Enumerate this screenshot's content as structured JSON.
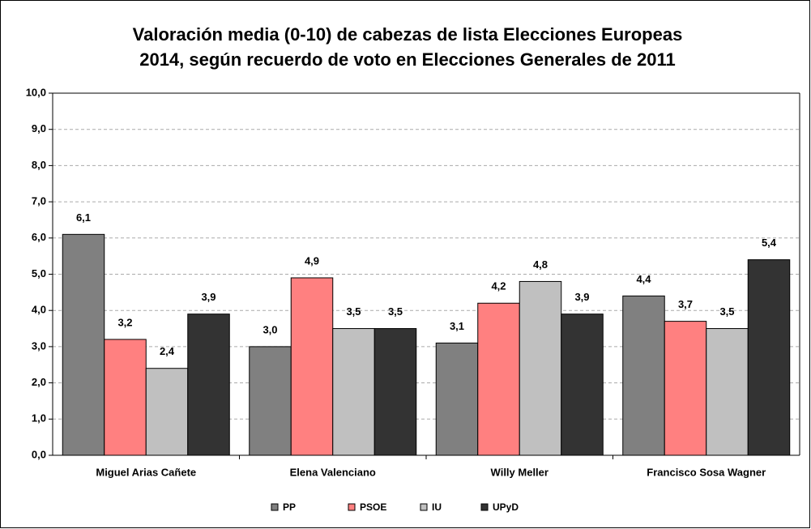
{
  "chart_data": {
    "type": "bar",
    "title": [
      "Valoración media (0-10) de cabezas de lista Elecciones Europeas",
      "2014, según recuerdo de voto en Elecciones Generales de 2011"
    ],
    "categories": [
      "Miguel Arias Cañete",
      "Elena Valenciano",
      "Willy Meller",
      "Francisco Sosa Wagner"
    ],
    "series": [
      {
        "name": "PP",
        "color": "#808080",
        "values": [
          6.1,
          3.0,
          3.1,
          4.4
        ],
        "value_labels": [
          "6,1",
          "3,0",
          "3,1",
          "4,4"
        ]
      },
      {
        "name": "PSOE",
        "color": "#ff8080",
        "values": [
          3.2,
          4.9,
          4.2,
          3.7
        ],
        "value_labels": [
          "3,2",
          "4,9",
          "4,2",
          "3,7"
        ]
      },
      {
        "name": "IU",
        "color": "#c0c0c0",
        "values": [
          2.4,
          3.5,
          4.8,
          3.5
        ],
        "value_labels": [
          "2,4",
          "3,5",
          "4,8",
          "3,5"
        ]
      },
      {
        "name": "UPyD",
        "color": "#333333",
        "values": [
          3.9,
          3.5,
          3.9,
          5.4
        ],
        "value_labels": [
          "3,9",
          "3,5",
          "3,9",
          "5,4"
        ]
      }
    ],
    "ylim": [
      0,
      10
    ],
    "yticks": [
      {
        "value": 0,
        "label": "0,0"
      },
      {
        "value": 1,
        "label": "1,0"
      },
      {
        "value": 2,
        "label": "2,0"
      },
      {
        "value": 3,
        "label": "3,0"
      },
      {
        "value": 4,
        "label": "4,0"
      },
      {
        "value": 5,
        "label": "5,0"
      },
      {
        "value": 6,
        "label": "6,0"
      },
      {
        "value": 7,
        "label": "7,0"
      },
      {
        "value": 8,
        "label": "8,0"
      },
      {
        "value": 9,
        "label": "9,0"
      },
      {
        "value": 10,
        "label": "10,0"
      }
    ],
    "grid": true,
    "legend": "bottom"
  }
}
